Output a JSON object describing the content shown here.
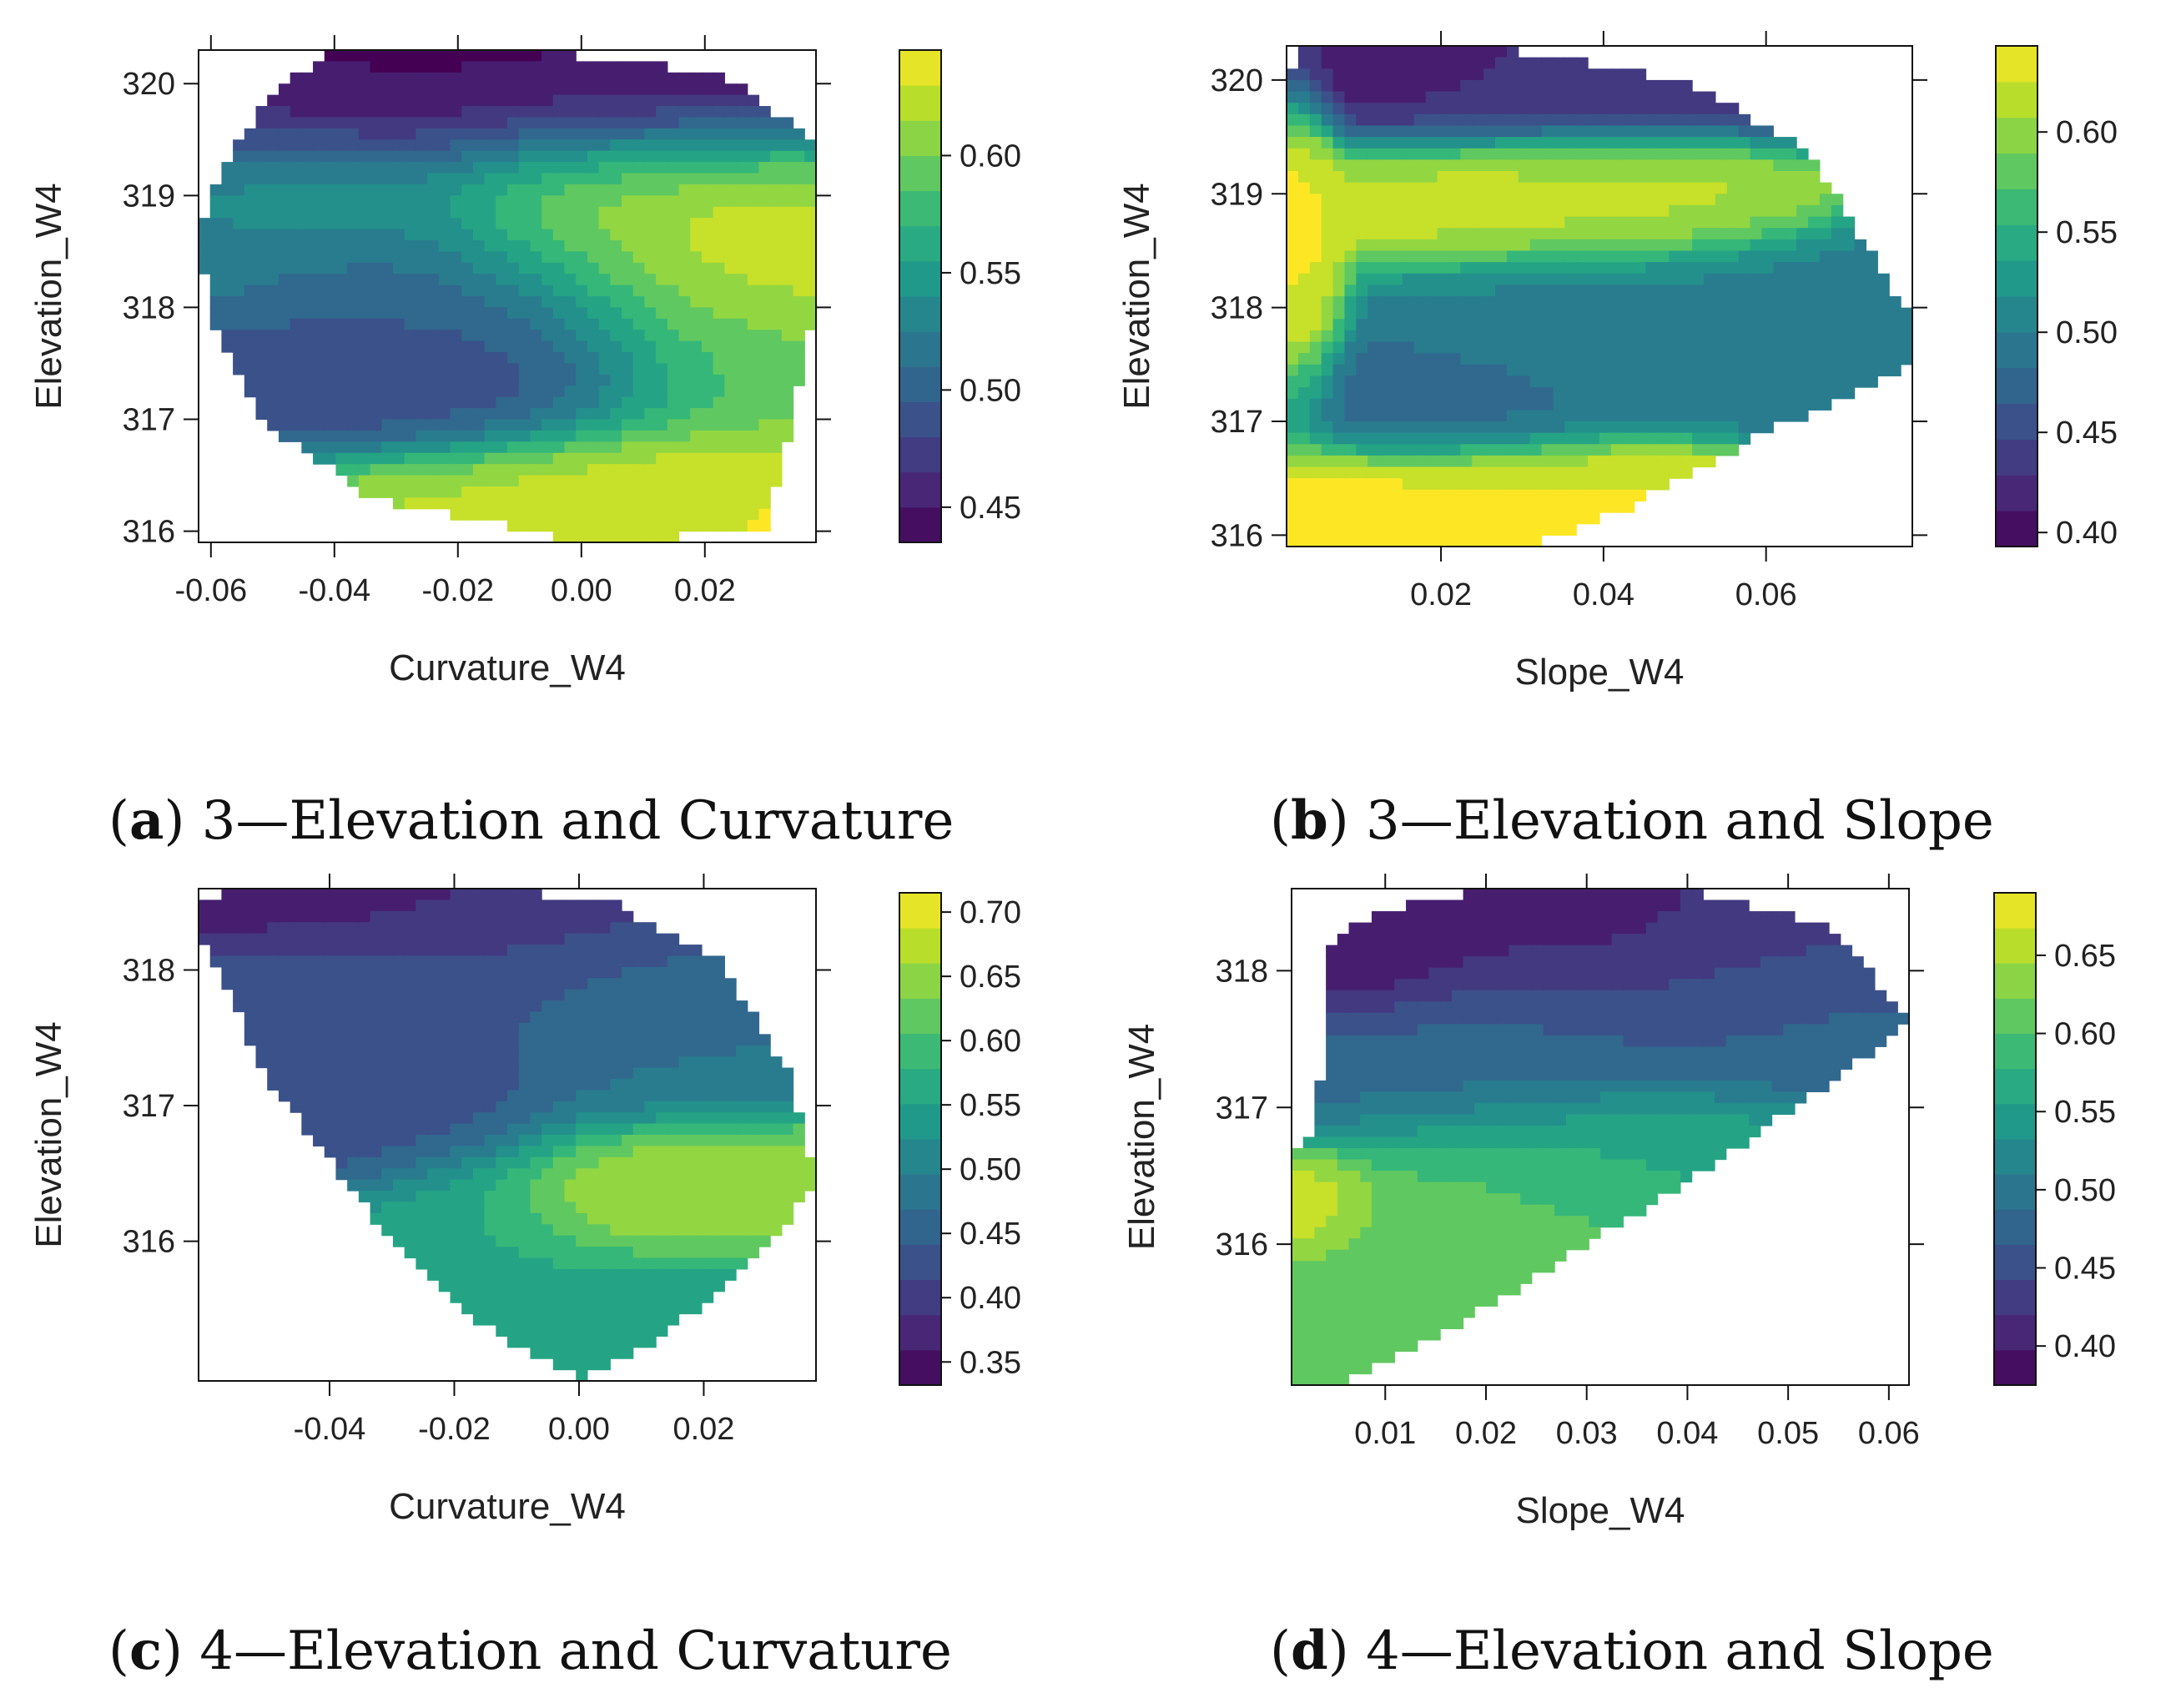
{
  "figure": {
    "panels": [
      {
        "caption": {
          "letter": "a",
          "text": "3—Elevation and Curvature"
        },
        "chart_data": {
          "type": "heatmap",
          "xlabel": "Curvature_W4",
          "ylabel": "Elevation_W4",
          "xlim": [
            -0.062,
            0.038
          ],
          "ylim": [
            315.9,
            320.3
          ],
          "xticks": [
            -0.06,
            -0.04,
            -0.02,
            0.0,
            0.02
          ],
          "xtick_labels": [
            "-0.06",
            "-0.04",
            "-0.02",
            "0.00",
            "0.02"
          ],
          "yticks": [
            316,
            317,
            318,
            319,
            320
          ],
          "ytick_labels": [
            "316",
            "317",
            "318",
            "319",
            "320"
          ],
          "colorbar": {
            "min": 0.435,
            "max": 0.645,
            "ticks": [
              0.45,
              0.5,
              0.55,
              0.6
            ],
            "tick_labels": [
              "0.45",
              "0.50",
              "0.55",
              "0.60"
            ]
          },
          "hull": [
            [
              -0.041,
              320.3
            ],
            [
              -0.008,
              320.3
            ],
            [
              0.022,
              320.1
            ],
            [
              0.038,
              319.5
            ],
            [
              0.038,
              318.0
            ],
            [
              0.034,
              317.0
            ],
            [
              0.03,
              316.0
            ],
            [
              0.0,
              315.9
            ],
            [
              -0.034,
              316.3
            ],
            [
              -0.052,
              317.0
            ],
            [
              -0.06,
              317.9
            ],
            [
              -0.062,
              318.6
            ],
            [
              -0.058,
              319.3
            ],
            [
              -0.05,
              319.9
            ]
          ],
          "field": [
            {
              "x": -0.015,
              "y": 320.1,
              "v": 0.44,
              "sx": 0.03,
              "sy": 0.35
            },
            {
              "x": -0.03,
              "y": 319.8,
              "v": 0.46,
              "sx": 0.05,
              "sy": 0.5
            },
            {
              "x": 0.0,
              "y": 318.9,
              "v": 0.625,
              "sx": 0.015,
              "sy": 0.5
            },
            {
              "x": 0.03,
              "y": 318.75,
              "v": 0.63,
              "sx": 0.015,
              "sy": 0.5
            },
            {
              "x": -0.025,
              "y": 318.25,
              "v": 0.5,
              "sx": 0.02,
              "sy": 0.45
            },
            {
              "x": -0.06,
              "y": 318.5,
              "v": 0.52,
              "sx": 0.01,
              "sy": 0.3
            },
            {
              "x": -0.02,
              "y": 317.3,
              "v": 0.49,
              "sx": 0.025,
              "sy": 0.4
            },
            {
              "x": 0.015,
              "y": 316.4,
              "v": 0.635,
              "sx": 0.02,
              "sy": 0.35
            },
            {
              "x": -0.015,
              "y": 316.2,
              "v": 0.615,
              "sx": 0.02,
              "sy": 0.3
            },
            {
              "x": 0.025,
              "y": 317.5,
              "v": 0.6,
              "sx": 0.015,
              "sy": 0.6
            },
            {
              "x": -0.045,
              "y": 319.0,
              "v": 0.56,
              "sx": 0.02,
              "sy": 0.4
            }
          ]
        }
      },
      {
        "caption": {
          "letter": "b",
          "text": "3—Elevation and Slope"
        },
        "chart_data": {
          "type": "heatmap",
          "xlabel": "Slope_W4",
          "ylabel": "Elevation_W4",
          "xlim": [
            0.001,
            0.078
          ],
          "ylim": [
            315.9,
            320.3
          ],
          "xticks": [
            0.02,
            0.04,
            0.06
          ],
          "xtick_labels": [
            "0.02",
            "0.04",
            "0.06"
          ],
          "yticks": [
            316,
            317,
            318,
            319,
            320
          ],
          "ytick_labels": [
            "316",
            "317",
            "318",
            "319",
            "320"
          ],
          "colorbar": {
            "min": 0.393,
            "max": 0.643,
            "ticks": [
              0.4,
              0.45,
              0.5,
              0.55,
              0.6
            ],
            "tick_labels": [
              "0.40",
              "0.45",
              "0.50",
              "0.55",
              "0.60"
            ]
          },
          "hull": [
            [
              0.003,
              320.3
            ],
            [
              0.025,
              320.3
            ],
            [
              0.05,
              320.0
            ],
            [
              0.065,
              319.4
            ],
            [
              0.078,
              317.9
            ],
            [
              0.078,
              317.5
            ],
            [
              0.06,
              316.9
            ],
            [
              0.042,
              316.2
            ],
            [
              0.03,
              315.9
            ],
            [
              0.001,
              315.9
            ],
            [
              0.001,
              320.0
            ]
          ],
          "field": [
            {
              "x": 0.01,
              "y": 320.2,
              "v": 0.4,
              "sx": 0.01,
              "sy": 0.25
            },
            {
              "x": 0.03,
              "y": 320.0,
              "v": 0.44,
              "sx": 0.02,
              "sy": 0.35
            },
            {
              "x": 0.025,
              "y": 318.95,
              "v": 0.615,
              "sx": 0.012,
              "sy": 0.3
            },
            {
              "x": 0.045,
              "y": 318.95,
              "v": 0.61,
              "sx": 0.01,
              "sy": 0.3
            },
            {
              "x": 0.05,
              "y": 317.9,
              "v": 0.5,
              "sx": 0.02,
              "sy": 0.4
            },
            {
              "x": 0.015,
              "y": 317.15,
              "v": 0.48,
              "sx": 0.012,
              "sy": 0.3
            },
            {
              "x": 0.007,
              "y": 316.25,
              "v": 0.64,
              "sx": 0.01,
              "sy": 0.25
            },
            {
              "x": 0.025,
              "y": 316.25,
              "v": 0.625,
              "sx": 0.015,
              "sy": 0.3
            },
            {
              "x": 0.002,
              "y": 318.5,
              "v": 0.63,
              "sx": 0.003,
              "sy": 1.0
            },
            {
              "x": 0.07,
              "y": 317.6,
              "v": 0.5,
              "sx": 0.01,
              "sy": 0.3
            }
          ]
        }
      },
      {
        "caption": {
          "letter": "c",
          "text": "4—Elevation and Curvature"
        },
        "chart_data": {
          "type": "heatmap",
          "xlabel": "Curvature_W4",
          "ylabel": "Elevation_W4",
          "xlim": [
            -0.061,
            0.038
          ],
          "ylim": [
            314.97,
            318.6
          ],
          "xticks": [
            -0.04,
            -0.02,
            0.0,
            0.02
          ],
          "xtick_labels": [
            "-0.04",
            "-0.02",
            "0.00",
            "0.02"
          ],
          "yticks": [
            316,
            317,
            318
          ],
          "ytick_labels": [
            "316",
            "317",
            "318"
          ],
          "colorbar": {
            "min": 0.332,
            "max": 0.715,
            "ticks": [
              0.35,
              0.4,
              0.45,
              0.5,
              0.55,
              0.6,
              0.65,
              0.7
            ],
            "tick_labels": [
              "0.35",
              "0.40",
              "0.45",
              "0.50",
              "0.55",
              "0.60",
              "0.65",
              "0.70"
            ]
          },
          "hull": [
            [
              -0.061,
              318.55
            ],
            [
              -0.04,
              318.6
            ],
            [
              -0.015,
              318.6
            ],
            [
              0.005,
              318.5
            ],
            [
              0.022,
              318.1
            ],
            [
              0.034,
              317.2
            ],
            [
              0.038,
              316.4
            ],
            [
              0.025,
              315.7
            ],
            [
              0.01,
              315.2
            ],
            [
              0.0,
              315.0
            ],
            [
              -0.012,
              315.25
            ],
            [
              -0.03,
              316.0
            ],
            [
              -0.05,
              317.2
            ],
            [
              -0.061,
              318.3
            ]
          ],
          "field": [
            {
              "x": -0.035,
              "y": 318.5,
              "v": 0.35,
              "sx": 0.025,
              "sy": 0.25
            },
            {
              "x": -0.01,
              "y": 318.3,
              "v": 0.43,
              "sx": 0.02,
              "sy": 0.4
            },
            {
              "x": -0.04,
              "y": 317.7,
              "v": 0.44,
              "sx": 0.02,
              "sy": 0.5
            },
            {
              "x": -0.03,
              "y": 317.0,
              "v": 0.42,
              "sx": 0.015,
              "sy": 0.3
            },
            {
              "x": 0.007,
              "y": 316.3,
              "v": 0.7,
              "sx": 0.01,
              "sy": 0.25
            },
            {
              "x": 0.025,
              "y": 316.35,
              "v": 0.65,
              "sx": 0.015,
              "sy": 0.3
            },
            {
              "x": -0.01,
              "y": 316.0,
              "v": 0.56,
              "sx": 0.015,
              "sy": 0.5
            },
            {
              "x": 0.015,
              "y": 315.5,
              "v": 0.54,
              "sx": 0.015,
              "sy": 0.35
            },
            {
              "x": 0.015,
              "y": 317.5,
              "v": 0.48,
              "sx": 0.015,
              "sy": 0.4
            }
          ]
        }
      },
      {
        "caption": {
          "letter": "d",
          "text": "4—Elevation and Slope"
        },
        "chart_data": {
          "type": "heatmap",
          "xlabel": "Slope_W4",
          "ylabel": "Elevation_W4",
          "xlim": [
            0.0007,
            0.062
          ],
          "ylim": [
            314.97,
            318.6
          ],
          "xticks": [
            0.01,
            0.02,
            0.03,
            0.04,
            0.05,
            0.06
          ],
          "xtick_labels": [
            "0.01",
            "0.02",
            "0.03",
            "0.04",
            "0.05",
            "0.06"
          ],
          "yticks": [
            316,
            317,
            318
          ],
          "ytick_labels": [
            "316",
            "317",
            "318"
          ],
          "colorbar": {
            "min": 0.375,
            "max": 0.69,
            "ticks": [
              0.4,
              0.45,
              0.5,
              0.55,
              0.6,
              0.65
            ],
            "tick_labels": [
              "0.40",
              "0.45",
              "0.50",
              "0.55",
              "0.60",
              "0.65"
            ]
          },
          "hull": [
            [
              0.004,
              318.2
            ],
            [
              0.01,
              318.45
            ],
            [
              0.02,
              318.6
            ],
            [
              0.04,
              318.6
            ],
            [
              0.055,
              318.3
            ],
            [
              0.062,
              317.6
            ],
            [
              0.045,
              316.7
            ],
            [
              0.03,
              316.0
            ],
            [
              0.015,
              315.3
            ],
            [
              0.005,
              314.97
            ],
            [
              0.0007,
              314.97
            ],
            [
              0.0007,
              316.7
            ],
            [
              0.003,
              316.8
            ],
            [
              0.004,
              317.5
            ]
          ],
          "field": [
            {
              "x": 0.028,
              "y": 318.5,
              "v": 0.39,
              "sx": 0.008,
              "sy": 0.25
            },
            {
              "x": 0.008,
              "y": 318.1,
              "v": 0.4,
              "sx": 0.006,
              "sy": 0.25
            },
            {
              "x": 0.04,
              "y": 318.2,
              "v": 0.44,
              "sx": 0.015,
              "sy": 0.4
            },
            {
              "x": 0.002,
              "y": 316.3,
              "v": 0.68,
              "sx": 0.004,
              "sy": 0.2
            },
            {
              "x": 0.02,
              "y": 316.3,
              "v": 0.61,
              "sx": 0.012,
              "sy": 0.4
            },
            {
              "x": 0.01,
              "y": 315.6,
              "v": 0.6,
              "sx": 0.006,
              "sy": 0.4
            },
            {
              "x": 0.035,
              "y": 316.6,
              "v": 0.56,
              "sx": 0.012,
              "sy": 0.3
            },
            {
              "x": 0.015,
              "y": 317.3,
              "v": 0.48,
              "sx": 0.015,
              "sy": 0.35
            },
            {
              "x": 0.055,
              "y": 317.6,
              "v": 0.48,
              "sx": 0.01,
              "sy": 0.3
            }
          ]
        }
      }
    ],
    "viridis": [
      "#440154",
      "#482878",
      "#3e4989",
      "#31688e",
      "#26828e",
      "#1f9e89",
      "#35b779",
      "#6ece58",
      "#b5de2b",
      "#fde725"
    ]
  }
}
